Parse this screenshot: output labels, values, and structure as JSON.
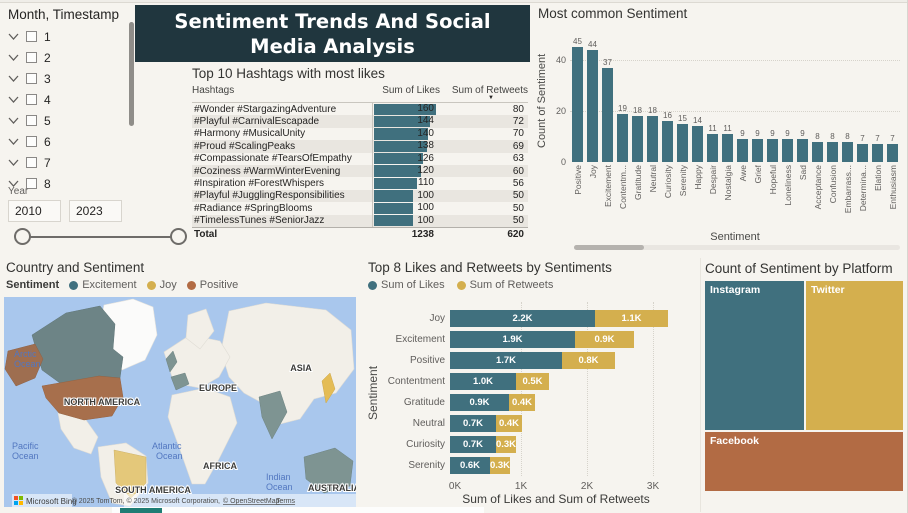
{
  "banner": {
    "title": "Sentiment Trends And Social Media Analysis"
  },
  "month_slicer": {
    "title": "Month, Timestamp",
    "items": [
      "1",
      "2",
      "3",
      "4",
      "5",
      "6",
      "7",
      "8"
    ]
  },
  "year_slicer": {
    "label": "Year",
    "start_value": "2010",
    "end_value": "2023"
  },
  "hashtag_table": {
    "title": "Top 10 Hashtags with most likes",
    "columns": {
      "hashtags": "Hashtags",
      "likes": "Sum of Likes",
      "retweets": "Sum of Retweets"
    },
    "rows": [
      {
        "hashtag": "#Wonder #StargazingAdventure",
        "likes": 160,
        "retweets": 80
      },
      {
        "hashtag": "#Playful #CarnivalEscapade",
        "likes": 144,
        "retweets": 72
      },
      {
        "hashtag": "#Harmony #MusicalUnity",
        "likes": 140,
        "retweets": 70
      },
      {
        "hashtag": "#Proud #ScalingPeaks",
        "likes": 138,
        "retweets": 69
      },
      {
        "hashtag": "#Compassionate #TearsOfEmpathy",
        "likes": 126,
        "retweets": 63
      },
      {
        "hashtag": "#Coziness #WarmWinterEvening",
        "likes": 120,
        "retweets": 60
      },
      {
        "hashtag": "#Inspiration #ForestWhispers",
        "likes": 110,
        "retweets": 56
      },
      {
        "hashtag": "#Playful #JugglingResponsibilities",
        "likes": 100,
        "retweets": 50
      },
      {
        "hashtag": "#Radiance #SpringBlooms",
        "likes": 100,
        "retweets": 50
      },
      {
        "hashtag": "#TimelessTunes #SeniorJazz",
        "likes": 100,
        "retweets": 50
      }
    ],
    "total": {
      "label": "Total",
      "likes": 1238,
      "retweets": 620
    }
  },
  "map": {
    "title": "Country and Sentiment",
    "legend_title": "Sentiment",
    "legend": [
      {
        "label": "Excitement",
        "color": "#40707e"
      },
      {
        "label": "Joy",
        "color": "#d4af4e"
      },
      {
        "label": "Positive",
        "color": "#b26b44"
      }
    ],
    "continent_labels": [
      "NORTH AMERICA",
      "EUROPE",
      "ASIA",
      "AFRICA",
      "SOUTH AMERICA",
      "AUSTRALIA"
    ],
    "ocean_labels": [
      "Arctic",
      "Ocean",
      "Pacific",
      "Ocean",
      "Atlantic",
      "Ocean",
      "Indian",
      "Ocean"
    ],
    "attribution_prefix": "© 2025 TomTom, © 2025 Microsoft Corporation,",
    "attribution_osm": "© OpenStreetMap",
    "attribution_terms": "Terms",
    "branding": "Microsoft Bing"
  },
  "chart_data": [
    {
      "id": "most_common_sentiment",
      "type": "bar",
      "title": "Most common Sentiment",
      "xlabel": "Sentiment",
      "ylabel": "Count of Sentiment",
      "ylim": [
        0,
        50
      ],
      "yticks": [
        0,
        20,
        40
      ],
      "grid": "horizontal-dotted",
      "categories": [
        "Positive",
        "Joy",
        "Excitement",
        "Contentm...",
        "Gratitude",
        "Neutral",
        "Curiosity",
        "Serenity",
        "Happy",
        "Despair",
        "Nostalgia",
        "Awe",
        "Grief",
        "Hopeful",
        "Loneliness",
        "Sad",
        "Acceptance",
        "Confusion",
        "Embarrass...",
        "Determina...",
        "Elation",
        "Enthusiasm"
      ],
      "values": [
        45,
        44,
        37,
        19,
        18,
        18,
        16,
        15,
        14,
        11,
        11,
        9,
        9,
        9,
        9,
        9,
        8,
        8,
        8,
        7,
        7,
        7
      ]
    },
    {
      "id": "likes_retweets_by_sentiment",
      "type": "bar",
      "orientation": "horizontal-stacked",
      "title": "Top 8 Likes and Retweets by Sentiments",
      "xlabel": "Sum of Likes and Sum of Retweets",
      "ylabel": "Sentiment",
      "xlim_k": [
        0,
        3.35
      ],
      "xticks": [
        "0K",
        "1K",
        "2K",
        "3K"
      ],
      "grid": "vertical-dotted",
      "legend_position": "top",
      "categories": [
        "Joy",
        "Excitement",
        "Positive",
        "Contentment",
        "Gratitude",
        "Neutral",
        "Curiosity",
        "Serenity"
      ],
      "series": [
        {
          "name": "Sum of Likes",
          "color": "#40707e",
          "values": [
            2.2,
            1.9,
            1.7,
            1.0,
            0.9,
            0.7,
            0.7,
            0.6
          ],
          "labels": [
            "2.2K",
            "1.9K",
            "1.7K",
            "1.0K",
            "0.9K",
            "0.7K",
            "0.7K",
            "0.6K"
          ]
        },
        {
          "name": "Sum of Retweets",
          "color": "#d4af4e",
          "values": [
            1.1,
            0.9,
            0.8,
            0.5,
            0.4,
            0.4,
            0.3,
            0.3
          ],
          "labels": [
            "1.1K",
            "0.9K",
            "0.8K",
            "0.5K",
            "0.4K",
            "0.4K",
            "0.3K",
            "0.3K"
          ]
        }
      ]
    },
    {
      "id": "sentiment_by_platform",
      "type": "treemap",
      "title": "Count of Sentiment by Platform",
      "items": [
        {
          "label": "Instagram",
          "color": "#40707e"
        },
        {
          "label": "Twitter",
          "color": "#d4af4e"
        },
        {
          "label": "Facebook",
          "color": "#b26b44"
        }
      ]
    }
  ]
}
